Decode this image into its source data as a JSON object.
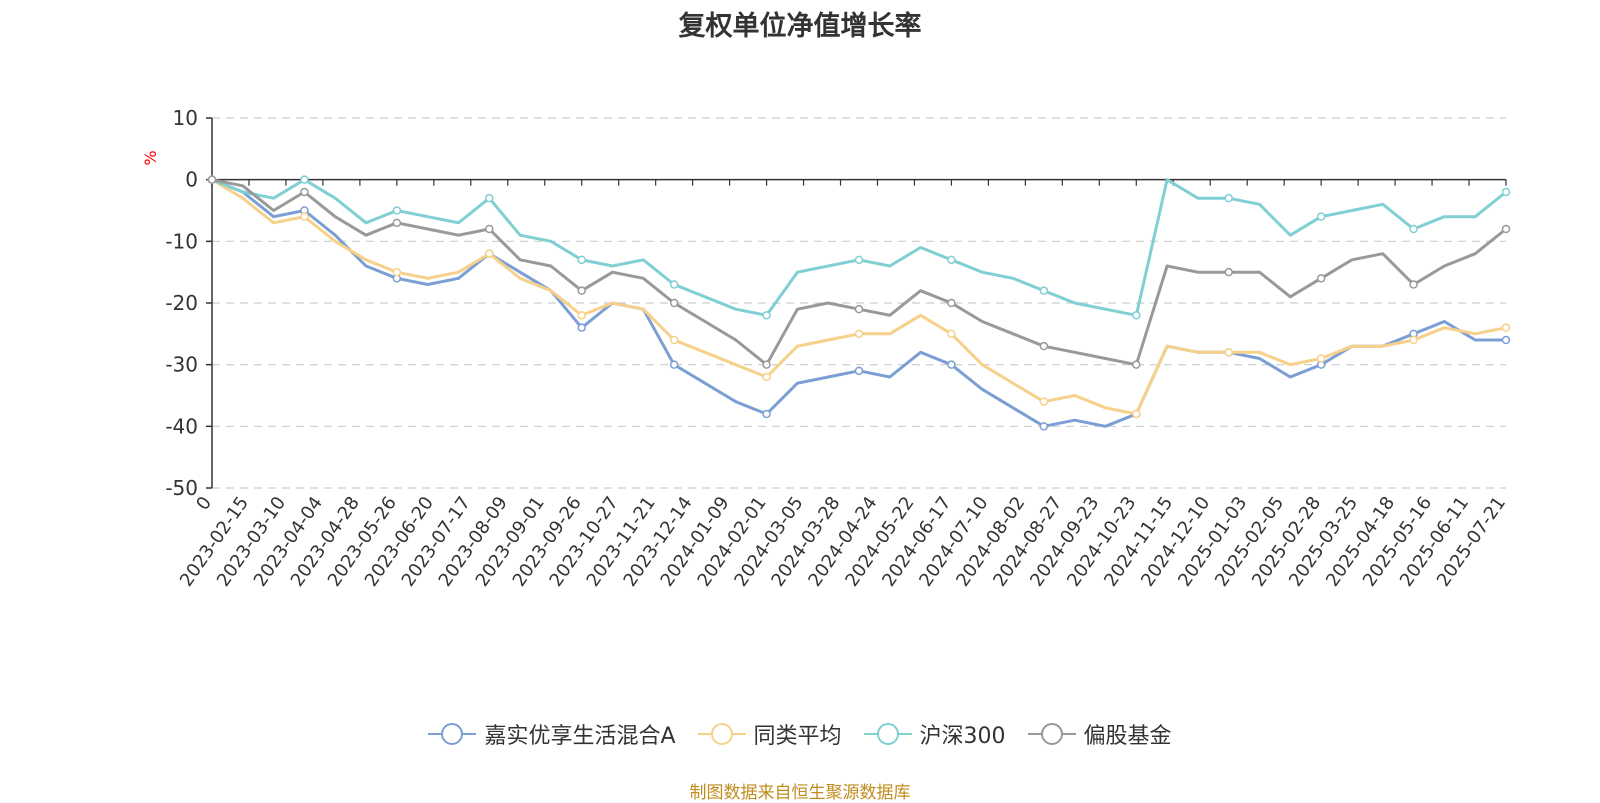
{
  "title": "复权单位净值增长率",
  "source": "制图数据来自恒生聚源数据库",
  "chart_data": {
    "type": "line",
    "title": "复权单位净值增长率",
    "ylabel": "%",
    "ylim": [
      -50,
      10
    ],
    "yticks": [
      10,
      0,
      -10,
      -20,
      -30,
      -40,
      -50
    ],
    "xticks": [
      "0",
      "2023-02-15",
      "2023-03-10",
      "2023-04-04",
      "2023-04-28",
      "2023-05-26",
      "2023-06-20",
      "2023-07-17",
      "2023-08-09",
      "2023-09-01",
      "2023-09-26",
      "2023-10-27",
      "2023-11-21",
      "2023-12-14",
      "2024-01-09",
      "2024-02-01",
      "2024-03-05",
      "2024-03-28",
      "2024-04-24",
      "2024-05-22",
      "2024-06-17",
      "2024-07-10",
      "2024-08-02",
      "2024-08-27",
      "2024-09-23",
      "2024-10-23",
      "2024-11-15",
      "2024-12-10",
      "2025-01-03",
      "2025-02-05",
      "2025-02-28",
      "2025-03-25",
      "2025-04-18",
      "2025-05-16",
      "2025-06-11",
      "2025-07-21"
    ],
    "grid": true,
    "legend_position": "bottom",
    "series": [
      {
        "name": "嘉实优享生活混合A",
        "color": "#7b9fd4",
        "values": [
          0,
          -2,
          -6,
          -5,
          -9,
          -14,
          -16,
          -17,
          -16,
          -12,
          -15,
          -18,
          -24,
          -20,
          -21,
          -30,
          -33,
          -36,
          -38,
          -33,
          -32,
          -31,
          -32,
          -28,
          -30,
          -34,
          -37,
          -40,
          -39,
          -40,
          -38,
          -27,
          -28,
          -28,
          -29,
          -32,
          -30,
          -27,
          -27,
          -25,
          -23,
          -26,
          -26
        ]
      },
      {
        "name": "同类平均",
        "color": "#f7d08a",
        "values": [
          0,
          -3,
          -7,
          -6,
          -10,
          -13,
          -15,
          -16,
          -15,
          -12,
          -16,
          -18,
          -22,
          -20,
          -21,
          -26,
          -28,
          -30,
          -32,
          -27,
          -26,
          -25,
          -25,
          -22,
          -25,
          -30,
          -33,
          -36,
          -35,
          -37,
          -38,
          -27,
          -28,
          -28,
          -28,
          -30,
          -29,
          -27,
          -27,
          -26,
          -24,
          -25,
          -24
        ]
      },
      {
        "name": "沪深300",
        "color": "#7fcfd3",
        "values": [
          0,
          -2,
          -3,
          0,
          -3,
          -7,
          -5,
          -6,
          -7,
          -3,
          -9,
          -10,
          -13,
          -14,
          -13,
          -17,
          -19,
          -21,
          -22,
          -15,
          -14,
          -13,
          -14,
          -11,
          -13,
          -15,
          -16,
          -18,
          -20,
          -21,
          -22,
          0,
          -3,
          -3,
          -4,
          -9,
          -6,
          -5,
          -4,
          -8,
          -6,
          -6,
          -2
        ]
      },
      {
        "name": "偏股基金",
        "color": "#999999",
        "values": [
          0,
          -1,
          -5,
          -2,
          -6,
          -9,
          -7,
          -8,
          -9,
          -8,
          -13,
          -14,
          -18,
          -15,
          -16,
          -20,
          -23,
          -26,
          -30,
          -21,
          -20,
          -21,
          -22,
          -18,
          -20,
          -23,
          -25,
          -27,
          -28,
          -29,
          -30,
          -14,
          -15,
          -15,
          -15,
          -19,
          -16,
          -13,
          -12,
          -17,
          -14,
          -12,
          -8
        ]
      }
    ]
  }
}
